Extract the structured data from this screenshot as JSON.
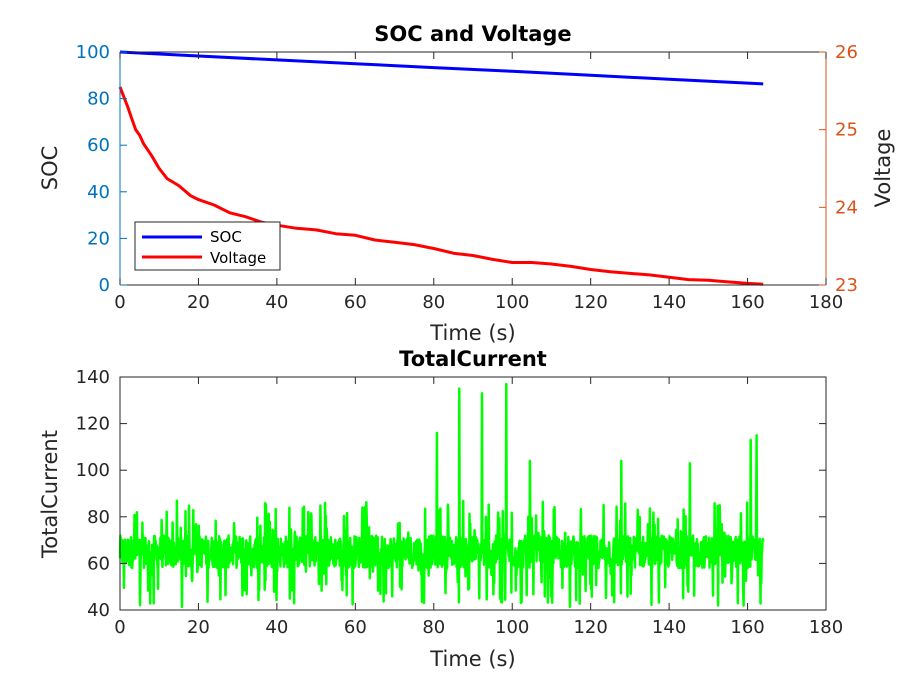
{
  "colors": {
    "soc": "#0000ff",
    "voltage": "#ff0000",
    "current": "#00ff00",
    "left_axis": "#0072bd",
    "right_axis": "#d95319",
    "axis": "#262626"
  },
  "chart_data": [
    {
      "type": "line",
      "title": "SOC and Voltage",
      "xlabel": "Time (s)",
      "ylabel_left": "SOC",
      "ylabel_right": "Voltage",
      "xlim": [
        0,
        180
      ],
      "ylim_left": [
        0,
        100
      ],
      "ylim_right": [
        23,
        26
      ],
      "xticks": [
        "0",
        "20",
        "40",
        "60",
        "80",
        "100",
        "120",
        "140",
        "160",
        "180"
      ],
      "yticks_left": [
        "0",
        "20",
        "40",
        "60",
        "80",
        "100"
      ],
      "yticks_right": [
        "23",
        "24",
        "25",
        "26"
      ],
      "grid": false,
      "legend": {
        "placement": "bottom-left",
        "entries": [
          "SOC",
          "Voltage"
        ]
      },
      "series": [
        {
          "name": "SOC",
          "axis": "left",
          "x": [
            0,
            20,
            40,
            60,
            80,
            100,
            120,
            140,
            164
          ],
          "y": [
            100,
            98.3,
            96.6,
            95.0,
            93.3,
            91.7,
            90.0,
            88.3,
            86.3
          ]
        },
        {
          "name": "Voltage",
          "axis": "right",
          "x": [
            0,
            1,
            2,
            3,
            4,
            5,
            6,
            8,
            10,
            12,
            15,
            18,
            20,
            24,
            28,
            32,
            36,
            40,
            45,
            50,
            55,
            60,
            65,
            70,
            75,
            80,
            85,
            90,
            95,
            100,
            105,
            110,
            115,
            120,
            125,
            130,
            135,
            140,
            145,
            150,
            155,
            160,
            164
          ],
          "y": [
            25.55,
            25.42,
            25.29,
            25.14,
            25.0,
            24.93,
            24.82,
            24.67,
            24.5,
            24.37,
            24.28,
            24.15,
            24.1,
            24.03,
            23.93,
            23.88,
            23.81,
            23.77,
            23.73,
            23.71,
            23.66,
            23.64,
            23.58,
            23.55,
            23.52,
            23.47,
            23.41,
            23.38,
            23.33,
            23.29,
            23.29,
            23.27,
            23.24,
            23.2,
            23.17,
            23.15,
            23.13,
            23.1,
            23.07,
            23.06,
            23.04,
            23.02,
            23.01
          ]
        }
      ]
    },
    {
      "type": "line",
      "title": "TotalCurrent",
      "xlabel": "Time (s)",
      "ylabel": "TotalCurrent",
      "xlim": [
        0,
        180
      ],
      "ylim": [
        40,
        140
      ],
      "xticks": [
        "0",
        "20",
        "40",
        "60",
        "80",
        "100",
        "120",
        "140",
        "160",
        "180"
      ],
      "yticks": [
        "40",
        "60",
        "80",
        "100",
        "120",
        "140"
      ],
      "grid": false,
      "series": [
        {
          "name": "TotalCurrent",
          "x_range": [
            0,
            164
          ],
          "y_range": [
            40,
            137
          ],
          "mean": 65,
          "spikes": [
            {
              "x": 80.8,
              "y": 116
            },
            {
              "x": 86.5,
              "y": 135
            },
            {
              "x": 92.3,
              "y": 133
            },
            {
              "x": 98.5,
              "y": 137
            },
            {
              "x": 104.5,
              "y": 104
            },
            {
              "x": 127.8,
              "y": 104
            },
            {
              "x": 145.3,
              "y": 103
            },
            {
              "x": 160.8,
              "y": 113
            },
            {
              "x": 162.3,
              "y": 115
            }
          ]
        }
      ]
    }
  ]
}
